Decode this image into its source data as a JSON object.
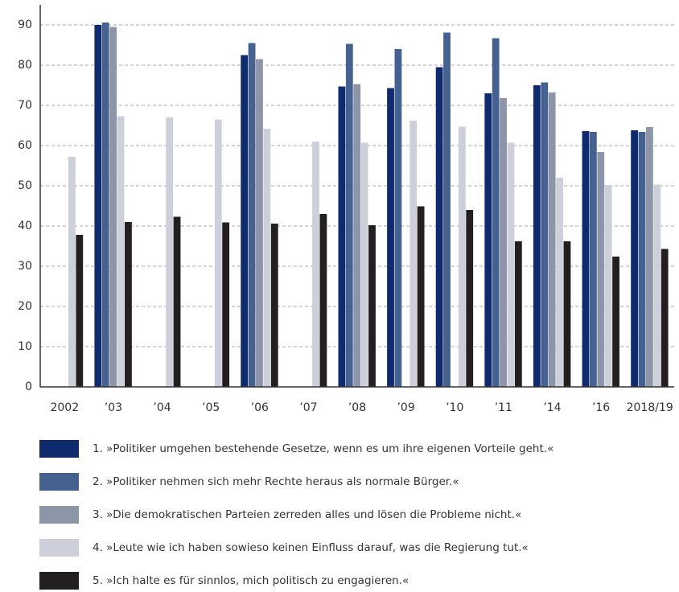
{
  "chart_data": {
    "type": "bar",
    "categories": [
      "2002",
      "’03",
      "’04",
      "’05",
      "’06",
      "’07",
      "’08",
      "’09",
      "’10",
      "’11",
      "’14",
      "’16",
      "2018/19"
    ],
    "series": [
      {
        "name": "1. »Politiker umgehen bestehende Gesetze, wenn es um ihre eigenen Vorteile geht.«",
        "color": "#0f2b6e",
        "values": [
          null,
          90,
          null,
          null,
          82.5,
          null,
          74.7,
          74.3,
          79.5,
          73,
          75,
          63.6,
          63.8
        ]
      },
      {
        "name": "2. »Politiker nehmen sich mehr Rechte heraus als normale Bürger.«",
        "color": "#45618f",
        "values": [
          null,
          90.6,
          null,
          null,
          85.5,
          null,
          85.3,
          84,
          88.1,
          86.7,
          75.7,
          63.4,
          63.4
        ]
      },
      {
        "name": "3. »Die demokratischen Parteien zerreden alles und lösen die Probleme nicht.«",
        "color": "#8d96a9",
        "values": [
          null,
          89.5,
          null,
          null,
          81.5,
          null,
          75.3,
          null,
          null,
          71.8,
          73.2,
          58.4,
          64.6
        ]
      },
      {
        "name": "4. »Leute wie ich haben sowieso keinen Einfluss darauf, was die Regierung tut.«",
        "color": "#cdd0da",
        "values": [
          57.2,
          67.3,
          67,
          66.5,
          64.2,
          61,
          60.7,
          66.2,
          64.7,
          60.7,
          52,
          50.2,
          50.3
        ]
      },
      {
        "name": "5. »Ich halte es für sinnlos, mich politisch zu engagieren.«",
        "color": "#231f20",
        "values": [
          37.8,
          41,
          42.3,
          40.9,
          40.6,
          43,
          40.2,
          44.9,
          44,
          36.2,
          36.2,
          32.4,
          34.3
        ]
      }
    ],
    "ylim": [
      0,
      95
    ],
    "yticks": [
      0,
      10,
      20,
      30,
      40,
      50,
      60,
      70,
      80,
      90
    ],
    "grid": true
  }
}
